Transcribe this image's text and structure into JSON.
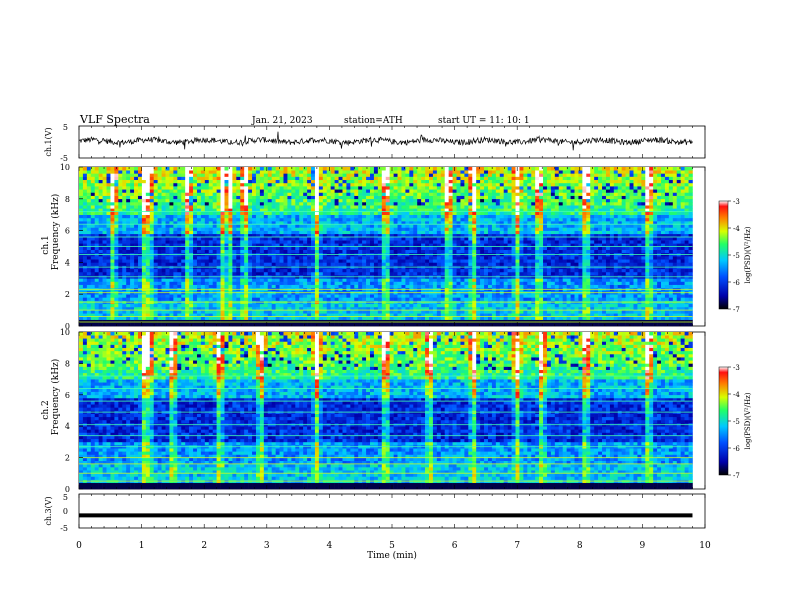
{
  "header": {
    "title": "VLF  Spectra",
    "date": "Jan. 21, 2023",
    "station": "station=ATH",
    "start": "start  UT  =    11: 10: 1"
  },
  "chart_data": [
    {
      "type": "line",
      "panel": "ch1-waveform",
      "ylabel": "ch.1(V)",
      "ylim": [
        -5,
        5
      ],
      "xlim": [
        0,
        10
      ],
      "yticks": [
        "5",
        "-5"
      ],
      "description_series_color": "#000000",
      "x_end": 9.8,
      "baseline": 0.3,
      "noise_amplitude": 0.9
    },
    {
      "type": "heatmap",
      "panel": "ch1-spectrogram",
      "ylabel_top": "ch.1",
      "ylabel": "Frequency  (kHz)",
      "ylim": [
        0,
        10
      ],
      "xlim": [
        0,
        10
      ],
      "yticks": [
        "0",
        "2",
        "4",
        "6",
        "8",
        "10"
      ],
      "colorbar": {
        "label": "log(PSD)(V²/Hz)",
        "ticks": [
          "-3",
          "-4",
          "-5",
          "-6",
          "-7"
        ],
        "range": [
          -7,
          -3
        ]
      },
      "bands_khz": [
        0.25,
        0.6,
        1.0,
        1.5,
        2.1,
        2.3,
        3.1,
        3.7,
        4.5,
        5.0,
        5.6,
        6.4,
        7.2
      ],
      "bursts_min": [
        0.55,
        1.05,
        1.12,
        1.75,
        2.3,
        2.4,
        2.65,
        3.8,
        4.9,
        5.9,
        6.3,
        7.0,
        7.35,
        8.1,
        9.1
      ]
    },
    {
      "type": "heatmap",
      "panel": "ch2-spectrogram",
      "ylabel_top": "ch.2",
      "ylabel": "Frequency  (kHz)",
      "ylim": [
        0,
        10
      ],
      "xlim": [
        0,
        10
      ],
      "yticks": [
        "0",
        "2",
        "4",
        "6",
        "8",
        "10"
      ],
      "colorbar": {
        "label": "log(PSD)(V²/Hz)",
        "ticks": [
          "-3",
          "-4",
          "-5",
          "-6",
          "-7"
        ],
        "range": [
          -7,
          -3
        ]
      },
      "bands_khz": [
        0.5,
        1.0,
        1.6,
        2.0,
        2.7,
        3.4,
        4.1,
        4.9,
        5.6,
        6.4,
        7.2
      ],
      "bursts_min": [
        1.05,
        1.12,
        1.5,
        2.25,
        2.9,
        3.8,
        4.9,
        5.6,
        6.3,
        7.0,
        7.4,
        8.1,
        9.1
      ]
    },
    {
      "type": "line",
      "panel": "ch3-waveform",
      "ylabel": "ch.3(V)",
      "ylim": [
        -5,
        5
      ],
      "xlim": [
        0,
        10
      ],
      "yticks": [
        "5",
        "0",
        "-5"
      ],
      "xlabel": "Time  (min)",
      "xticks": [
        "0",
        "1",
        "2",
        "3",
        "4",
        "5",
        "6",
        "7",
        "8",
        "9",
        "10"
      ],
      "x_end": 9.8,
      "baseline": -1.3
    }
  ]
}
